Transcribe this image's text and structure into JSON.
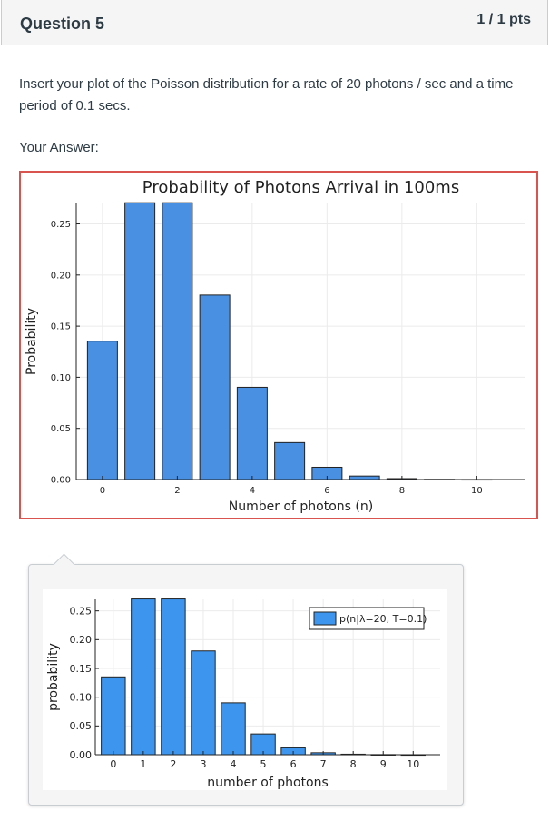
{
  "question": {
    "title": "Question 5",
    "points": "1 / 1 pts",
    "text": "Insert your plot of the Poisson distribution for a rate of 20 photons / sec and a time period of 0.1 secs.",
    "answer_label": "Your Answer:"
  },
  "chart_data": [
    {
      "type": "bar",
      "title": "Probability of Photons Arrival in 100ms",
      "xlabel": "Number of photons (n)",
      "ylabel": "Probability",
      "x": [
        0,
        1,
        2,
        3,
        4,
        5,
        6,
        7,
        8,
        9,
        10
      ],
      "values": [
        0.1353,
        0.2707,
        0.2707,
        0.1804,
        0.0902,
        0.0361,
        0.012,
        0.0034,
        0.0009,
        0.0002,
        4e-05
      ],
      "xticks": [
        0,
        2,
        4,
        6,
        8,
        10
      ],
      "xtick_labels": [
        "0",
        "2",
        "4",
        "6",
        "8",
        "10"
      ],
      "yticks": [
        0.0,
        0.05,
        0.1,
        0.15,
        0.2,
        0.25
      ],
      "ytick_labels": [
        "0.00",
        "0.05",
        "0.10",
        "0.15",
        "0.20",
        "0.25"
      ],
      "ylim": [
        0,
        0.27
      ],
      "xlim": [
        -0.7,
        11.3
      ],
      "grid": true,
      "bar_color": "#4a90e2"
    },
    {
      "type": "bar",
      "title": "",
      "xlabel": "number of photons",
      "ylabel": "probability",
      "x": [
        0,
        1,
        2,
        3,
        4,
        5,
        6,
        7,
        8,
        9,
        10
      ],
      "values": [
        0.1353,
        0.2707,
        0.2707,
        0.1804,
        0.0902,
        0.0361,
        0.012,
        0.0034,
        0.0009,
        0.0002,
        4e-05
      ],
      "xticks": [
        0,
        1,
        2,
        3,
        4,
        5,
        6,
        7,
        8,
        9,
        10
      ],
      "xtick_labels": [
        "0",
        "1",
        "2",
        "3",
        "4",
        "5",
        "6",
        "7",
        "8",
        "9",
        "10"
      ],
      "yticks": [
        0.0,
        0.05,
        0.1,
        0.15,
        0.2,
        0.25
      ],
      "ytick_labels": [
        "0.00",
        "0.05",
        "0.10",
        "0.15",
        "0.20",
        "0.25"
      ],
      "ylim": [
        0,
        0.27
      ],
      "xlim": [
        -0.6,
        10.9
      ],
      "grid": true,
      "legend": "p(n|λ=20, T=0.1)",
      "legend_position": "top-right",
      "bar_color": "#3d95ee"
    }
  ]
}
